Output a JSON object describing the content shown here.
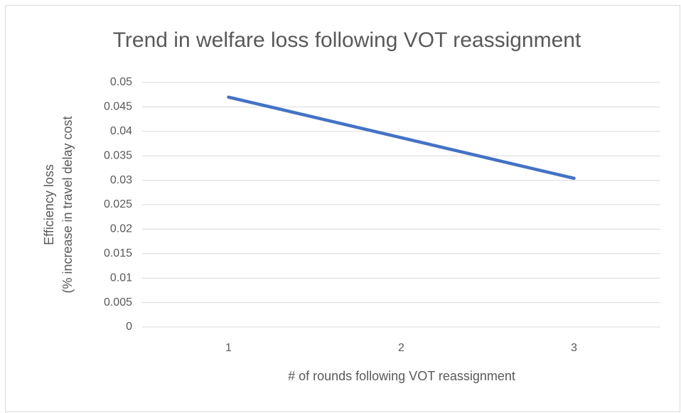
{
  "chart_data": {
    "type": "line",
    "title": "Trend in welfare loss following VOT reassignment",
    "xlabel": "# of rounds following VOT reassignment",
    "ylabel": [
      "Efficiency loss",
      "(% increase in travel delay cost"
    ],
    "categories": [
      "1",
      "2",
      "3"
    ],
    "series": [
      {
        "name": "Efficiency loss",
        "color": "#4472c4",
        "values": [
          0.047,
          0.0387,
          0.0304
        ]
      }
    ],
    "ylim": [
      0,
      0.05
    ],
    "yticks": [
      0,
      0.005,
      0.01,
      0.015,
      0.02,
      0.025,
      0.03,
      0.035,
      0.04,
      0.045,
      0.05
    ],
    "grid": true
  }
}
